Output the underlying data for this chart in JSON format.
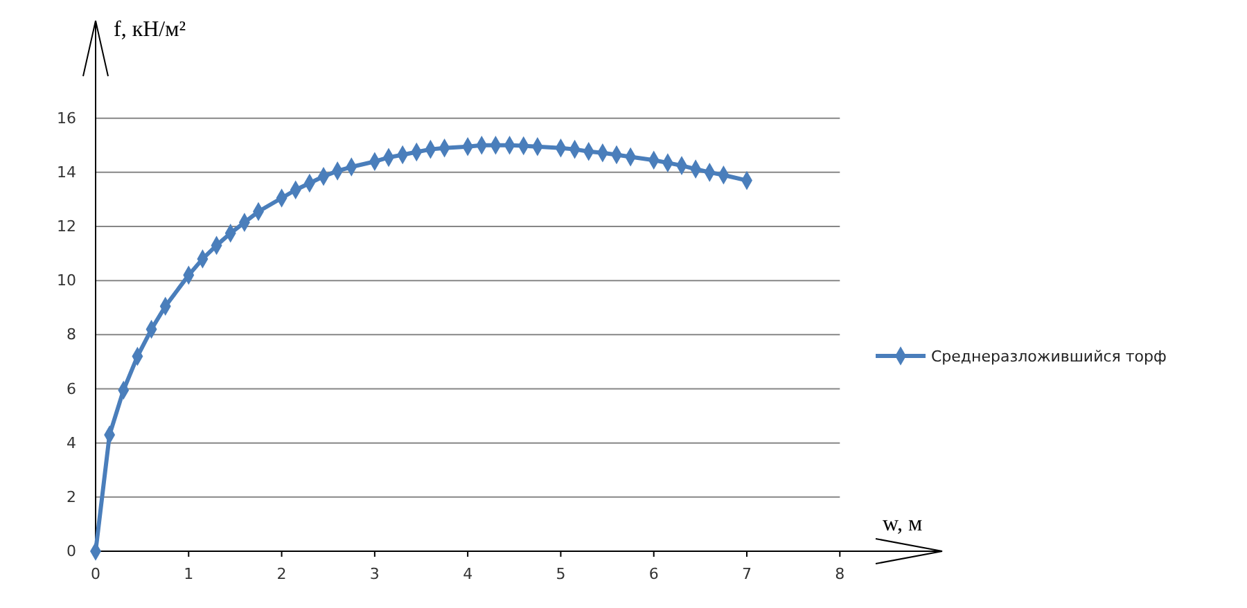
{
  "chart_data": {
    "type": "line",
    "xlabel": "w, м",
    "ylabel": "f, кН/м²",
    "x": [
      0,
      0.15,
      0.3,
      0.45,
      0.6,
      0.75,
      1.0,
      1.15,
      1.3,
      1.45,
      1.6,
      1.75,
      2.0,
      2.15,
      2.3,
      2.45,
      2.6,
      2.75,
      3.0,
      3.15,
      3.3,
      3.45,
      3.6,
      3.75,
      4.0,
      4.15,
      4.3,
      4.45,
      4.6,
      4.75,
      5.0,
      5.15,
      5.3,
      5.45,
      5.6,
      5.75,
      6.0,
      6.15,
      6.3,
      6.45,
      6.6,
      6.75,
      7.0
    ],
    "series": [
      {
        "name": "Среднеразложившийся торф",
        "color": "#4a7ebb",
        "values": [
          0,
          4.3,
          5.95,
          7.2,
          8.2,
          9.05,
          10.2,
          10.8,
          11.3,
          11.75,
          12.15,
          12.55,
          13.05,
          13.35,
          13.6,
          13.85,
          14.05,
          14.2,
          14.4,
          14.55,
          14.65,
          14.75,
          14.85,
          14.9,
          14.95,
          15.0,
          15.0,
          15.0,
          14.98,
          14.95,
          14.9,
          14.85,
          14.77,
          14.72,
          14.65,
          14.57,
          14.45,
          14.35,
          14.25,
          14.12,
          14.0,
          13.9,
          13.7
        ]
      }
    ],
    "xlim": [
      0,
      9.1
    ],
    "ylim": [
      0,
      19.6
    ],
    "xticks": [
      0,
      1,
      2,
      3,
      4,
      5,
      6,
      7,
      8
    ],
    "yticks": [
      0,
      2,
      4,
      6,
      8,
      10,
      12,
      14,
      16
    ],
    "grid": "y",
    "legend": "right",
    "marker": "diamond",
    "line_style": "solid"
  }
}
